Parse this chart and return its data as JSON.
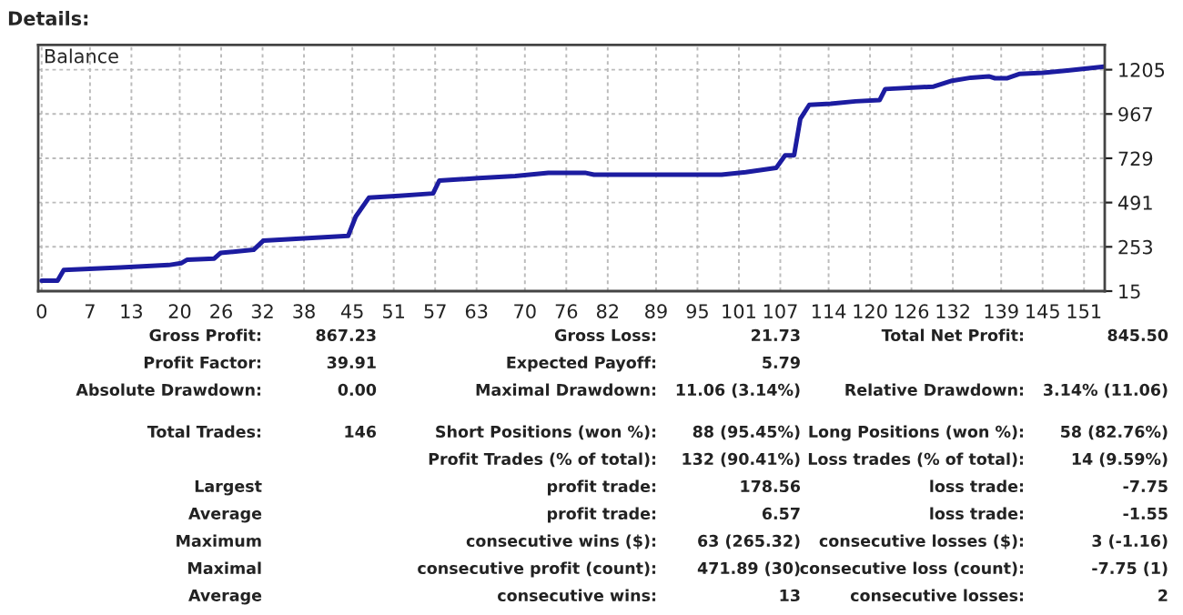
{
  "chart_data": {
    "type": "line",
    "title": "Details:",
    "x": [
      0,
      2.3,
      3.2,
      11.4,
      18.4,
      20.2,
      21.1,
      25,
      25.9,
      30.7,
      32.1,
      35.1,
      44.4,
      45.5,
      47.4,
      51.8,
      56.7,
      57.6,
      63.3,
      68.6,
      73.4,
      78.7,
      80,
      98.5,
      102,
      106.4,
      107.7,
      109,
      109.9,
      111.2,
      114.3,
      117.9,
      121.4,
      122.2,
      129.2,
      131.9,
      134.6,
      137.2,
      138.1,
      139.8,
      141.6,
      145.1,
      148.6,
      153.9
    ],
    "series": [
      {
        "color": "#1c1ca0",
        "values": [
          71,
          71,
          129,
          142,
          155,
          165,
          184,
          190,
          220,
          237,
          286,
          293,
          312,
          416,
          517,
          527,
          540,
          609,
          622,
          634,
          651,
          651,
          641,
          641,
          654,
          677,
          745,
          745,
          941,
          1016,
          1022,
          1035,
          1042,
          1101,
          1114,
          1146,
          1162,
          1169,
          1159,
          1159,
          1182,
          1188,
          1201,
          1221
        ]
      }
    ],
    "xlim": [
      -0.5,
      154
    ],
    "ylim": [
      15,
      1338
    ],
    "xticks": [
      0,
      7,
      13,
      20,
      26,
      32,
      38,
      45,
      51,
      57,
      63,
      70,
      76,
      82,
      89,
      95,
      101,
      107,
      114,
      120,
      126,
      132,
      139,
      145,
      151
    ],
    "yticks": [
      15,
      253,
      491,
      729,
      967,
      1205
    ],
    "grid": true,
    "line_style": "solid",
    "marker": "none",
    "annotations": [
      "Balance",
      "Gross Profit:",
      "867.23",
      "Gross Loss:",
      "21.73",
      "Total Net Profit:",
      "845.50",
      "Profit Factor:",
      "39.91",
      "Expected Payoff:",
      "5.79",
      "Absolute Drawdown:",
      "0.00",
      "Maximal Drawdown:",
      "11.06 (3.14%)",
      "Relative Drawdown:",
      "3.14% (11.06)",
      "Total Trades:",
      "146",
      "Short Positions (won %):",
      "88 (95.45%)",
      "Long Positions (won %):",
      "58 (82.76%)",
      "Profit Trades (% of total):",
      "132 (90.41%)",
      "Loss trades (% of total):",
      "14 (9.59%)",
      "Largest",
      "profit trade:",
      "178.56",
      "loss trade:",
      "-7.75",
      "Average",
      "profit trade:",
      "6.57",
      "loss trade:",
      "-1.55",
      "Maximum",
      "consecutive wins ($):",
      "63 (265.32)",
      "consecutive losses ($):",
      "3 (-1.16)",
      "Maximal",
      "consecutive profit (count):",
      "471.89 (30)",
      "consecutive loss (count):",
      "-7.75 (1)",
      "Average",
      "consecutive wins:",
      "13",
      "consecutive losses:",
      "2"
    ]
  }
}
